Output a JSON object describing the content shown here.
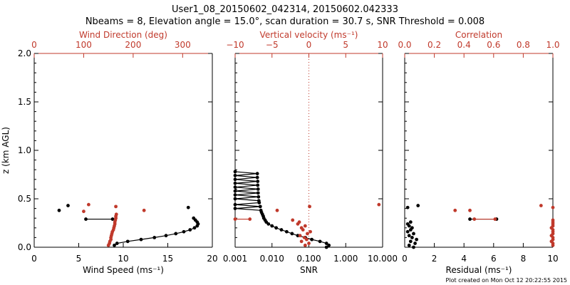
{
  "title_line1": "User1_08_20150602_042314, 20150602.042333",
  "title_line2": "Nbeams = 8, Elevation angle = 15.0°, scan duration = 30.7 s, SNR Threshold = 0.008",
  "footer": "Plot created on Mon Oct 12 20:22:55 2015",
  "colors": {
    "black": "#000000",
    "red": "#c0392b"
  },
  "chart_data": [
    {
      "type": "scatter",
      "panel": "wind",
      "ylabel": "z (km AGL)",
      "ylim": [
        0,
        2
      ],
      "yticks": [
        "0.0",
        "0.5",
        "1.0",
        "1.5",
        "2.0"
      ],
      "bottom_axis": {
        "label": "Wind Speed (ms⁻¹)",
        "lim": [
          0,
          20
        ],
        "ticks": [
          "0",
          "5",
          "10",
          "15",
          "20"
        ]
      },
      "top_axis": {
        "label": "Wind Direction (deg)",
        "lim": [
          0,
          360
        ],
        "ticks": [
          "0",
          "100",
          "200",
          "300"
        ]
      },
      "series": [
        {
          "name": "Wind Speed",
          "axis": "bottom",
          "color": "black",
          "connected": true,
          "z": [
            0.02,
            0.04,
            0.06,
            0.08,
            0.1,
            0.12,
            0.14,
            0.16,
            0.18,
            0.2,
            0.22,
            0.24,
            0.26,
            0.28,
            0.3
          ],
          "x": [
            9.0,
            9.3,
            10.5,
            12.0,
            13.5,
            14.8,
            15.9,
            16.8,
            17.5,
            18.0,
            18.3,
            18.4,
            18.3,
            18.1,
            17.9
          ]
        },
        {
          "name": "Wind Speed",
          "axis": "bottom",
          "color": "black",
          "connected": true,
          "z": [
            0.29,
            0.29
          ],
          "x": [
            5.8,
            8.8
          ]
        },
        {
          "name": "Wind Speed",
          "axis": "bottom",
          "color": "black",
          "connected": false,
          "z": [
            0.38,
            0.43,
            0.41
          ],
          "x": [
            2.8,
            3.8,
            17.3
          ]
        },
        {
          "name": "Wind Direction",
          "axis": "top",
          "color": "red",
          "connected": false,
          "z": [
            0.02,
            0.04,
            0.06,
            0.08,
            0.1,
            0.12,
            0.14,
            0.16,
            0.18,
            0.2,
            0.22,
            0.24,
            0.26,
            0.28,
            0.3,
            0.32,
            0.34
          ],
          "x": [
            150,
            152,
            153,
            155,
            155,
            156,
            157,
            158,
            160,
            161,
            162,
            163,
            163,
            164,
            165,
            165,
            166
          ]
        },
        {
          "name": "Wind Direction",
          "axis": "top",
          "color": "red",
          "connected": false,
          "z": [
            0.37,
            0.44,
            0.42,
            0.38
          ],
          "x": [
            100,
            110,
            165,
            222
          ]
        }
      ]
    },
    {
      "type": "line",
      "panel": "snr",
      "ylim": [
        0,
        2
      ],
      "bottom_axis": {
        "label": "SNR",
        "scale": "log",
        "lim": [
          0.001,
          10
        ],
        "ticks": [
          "0.001",
          "0.010",
          "0.100",
          "1.000",
          "10.000"
        ]
      },
      "top_axis": {
        "label": "Vertical velocity (ms⁻¹)",
        "lim": [
          -10,
          10
        ],
        "ticks": [
          "−10",
          "−5",
          "0",
          "5",
          "10"
        ]
      },
      "series": [
        {
          "name": "SNR",
          "axis": "bottom",
          "color": "black",
          "connected": true,
          "z": [
            0.0,
            0.02,
            0.04,
            0.06,
            0.08,
            0.1,
            0.12,
            0.14,
            0.16,
            0.18,
            0.2,
            0.22,
            0.24,
            0.26,
            0.28,
            0.3,
            0.32,
            0.34,
            0.36,
            0.38,
            0.4,
            0.42,
            0.44,
            0.46,
            0.48,
            0.5,
            0.52,
            0.54,
            0.56,
            0.58,
            0.6,
            0.62,
            0.64,
            0.66,
            0.68,
            0.7,
            0.72,
            0.74,
            0.76,
            0.78
          ],
          "x": [
            0.3,
            0.35,
            0.3,
            0.2,
            0.12,
            0.08,
            0.05,
            0.035,
            0.025,
            0.018,
            0.013,
            0.01,
            0.008,
            0.007,
            0.0065,
            0.006,
            0.0058,
            0.0055,
            0.0052,
            0.005,
            0.001,
            0.0048,
            0.001,
            0.0045,
            0.0044,
            0.001,
            0.0043,
            0.001,
            0.0042,
            0.001,
            0.0042,
            0.001,
            0.0041,
            0.001,
            0.0041,
            0.001,
            0.004,
            0.001,
            0.004,
            0.001
          ]
        },
        {
          "name": "Vertical velocity",
          "axis": "top",
          "color": "red",
          "connected": false,
          "z": [
            0.02,
            0.04,
            0.06,
            0.08,
            0.1,
            0.12,
            0.14,
            0.16,
            0.18,
            0.2,
            0.22,
            0.24,
            0.26,
            0.28
          ],
          "x": [
            -0.5,
            0.0,
            -1.0,
            -0.3,
            -0.6,
            -1.2,
            -0.2,
            0.2,
            -0.8,
            -1.0,
            -0.5,
            -1.5,
            -1.3,
            -2.2
          ]
        },
        {
          "name": "Vertical velocity",
          "axis": "top",
          "color": "red",
          "connected": true,
          "z": [
            0.29,
            0.29
          ],
          "x": [
            -10,
            -8.0
          ]
        },
        {
          "name": "Vertical velocity",
          "axis": "top",
          "color": "red",
          "connected": false,
          "z": [
            0.38,
            0.42,
            0.44
          ],
          "x": [
            -4.3,
            0.1,
            9.5
          ]
        }
      ],
      "reference_line": {
        "axis": "top",
        "x": 0,
        "color": "red",
        "style": "dotted"
      }
    },
    {
      "type": "scatter",
      "panel": "residual",
      "ylim": [
        0,
        2
      ],
      "bottom_axis": {
        "label": "Residual (ms⁻¹)",
        "lim": [
          0,
          10
        ],
        "ticks": [
          "0",
          "2",
          "4",
          "6",
          "8",
          "10"
        ]
      },
      "top_axis": {
        "label": "Correlation",
        "lim": [
          0,
          1
        ],
        "ticks": [
          "0.0",
          "0.2",
          "0.4",
          "0.6",
          "0.8",
          "1.0"
        ]
      },
      "series": [
        {
          "name": "Residual",
          "axis": "bottom",
          "color": "black",
          "connected": false,
          "z": [
            0.0,
            0.02,
            0.04,
            0.06,
            0.08,
            0.1,
            0.12,
            0.14,
            0.16,
            0.18,
            0.2,
            0.22,
            0.24,
            0.26,
            0.41,
            0.43
          ],
          "x": [
            0.6,
            0.3,
            0.7,
            0.4,
            0.8,
            0.5,
            0.3,
            0.6,
            0.2,
            0.4,
            0.5,
            0.3,
            0.2,
            0.4,
            0.2,
            0.9
          ]
        },
        {
          "name": "Residual",
          "axis": "bottom",
          "color": "black",
          "connected": true,
          "z": [
            0.29,
            0.29
          ],
          "x": [
            4.4,
            6.2
          ]
        },
        {
          "name": "Correlation",
          "axis": "top",
          "color": "red",
          "connected": false,
          "z": [
            0.02,
            0.04,
            0.06,
            0.08,
            0.1,
            0.12,
            0.14,
            0.16,
            0.18,
            0.2,
            0.22,
            0.24,
            0.26,
            0.28
          ],
          "x": [
            1.0,
            1.0,
            0.99,
            1.0,
            1.0,
            0.99,
            1.0,
            1.0,
            1.0,
            0.99,
            1.0,
            1.0,
            1.0,
            1.0
          ]
        },
        {
          "name": "Correlation",
          "axis": "top",
          "color": "red",
          "connected": true,
          "z": [
            0.29,
            0.29
          ],
          "x": [
            0.47,
            0.61
          ]
        },
        {
          "name": "Correlation",
          "axis": "top",
          "color": "red",
          "connected": false,
          "z": [
            0.38,
            0.38,
            0.43,
            0.41
          ],
          "x": [
            0.34,
            0.44,
            0.92,
            1.0
          ]
        }
      ]
    }
  ]
}
